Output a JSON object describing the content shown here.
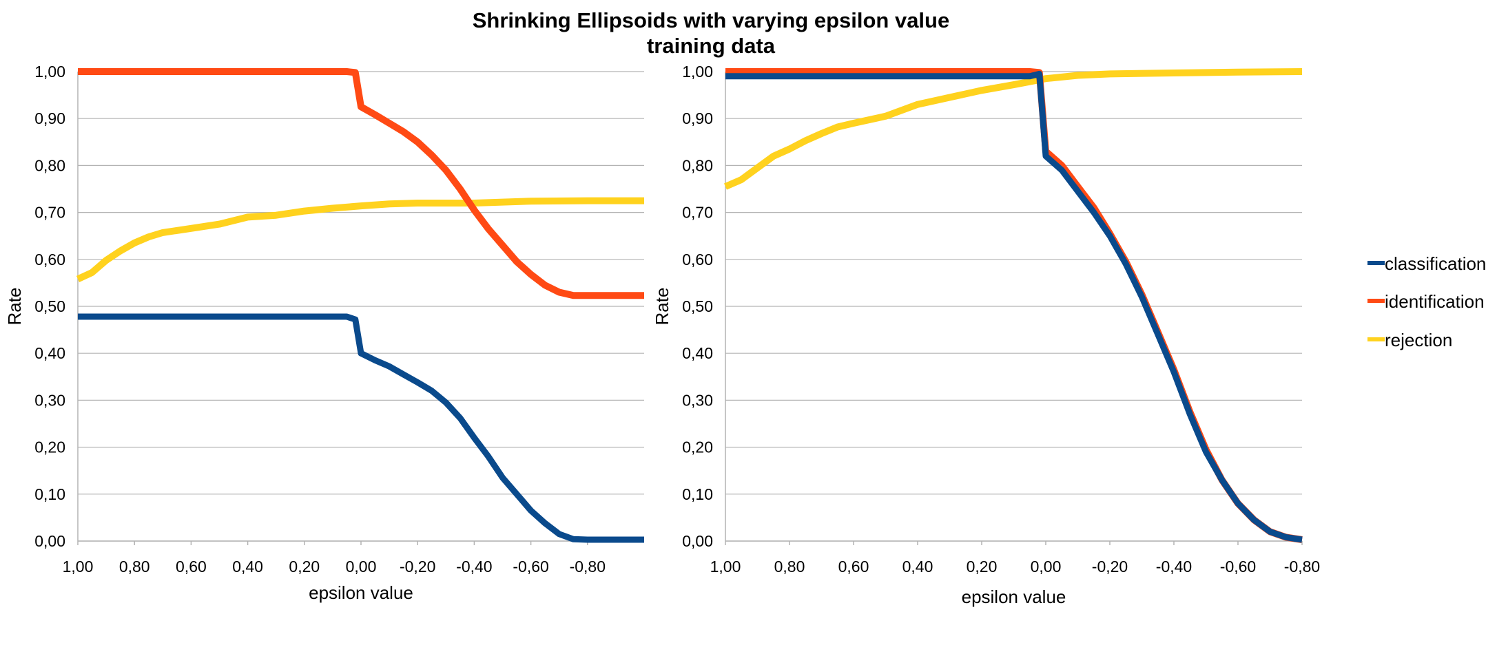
{
  "title_line1": "Shrinking Ellipsoids with varying epsilon value",
  "title_line2": "training data",
  "legend": [
    {
      "label": "classification",
      "color": "#0a4a8c"
    },
    {
      "label": "identification",
      "color": "#ff4a14"
    },
    {
      "label": "rejection",
      "color": "#ffd21e"
    }
  ],
  "chart_data": [
    {
      "type": "line",
      "xlabel": "epsilon value",
      "ylabel": "Rate",
      "xlim": [
        1.0,
        -1.0
      ],
      "ylim": [
        0,
        1
      ],
      "y_ticks": [
        "0,00",
        "0,10",
        "0,20",
        "0,30",
        "0,40",
        "0,50",
        "0,60",
        "0,70",
        "0,80",
        "0,90",
        "1,00"
      ],
      "x_ticks": [
        {
          "v": 1.0,
          "label": "1,00"
        },
        {
          "v": 0.8,
          "label": "0,80"
        },
        {
          "v": 0.6,
          "label": "0,60"
        },
        {
          "v": 0.4,
          "label": "0,40"
        },
        {
          "v": 0.2,
          "label": "0,20"
        },
        {
          "v": 0.0,
          "label": "0,00"
        },
        {
          "v": -0.2,
          "label": "-0,20"
        },
        {
          "v": -0.4,
          "label": "-0,40"
        },
        {
          "v": -0.6,
          "label": "-0,60"
        },
        {
          "v": -0.8,
          "label": "-0,80"
        }
      ],
      "grid": true,
      "series": [
        {
          "name": "classification",
          "color": "#0a4a8c",
          "points": [
            [
              1.0,
              0.478
            ],
            [
              0.8,
              0.478
            ],
            [
              0.6,
              0.478
            ],
            [
              0.4,
              0.478
            ],
            [
              0.2,
              0.478
            ],
            [
              0.05,
              0.478
            ],
            [
              0.02,
              0.472
            ],
            [
              0.0,
              0.4
            ],
            [
              -0.05,
              0.385
            ],
            [
              -0.1,
              0.372
            ],
            [
              -0.15,
              0.355
            ],
            [
              -0.2,
              0.338
            ],
            [
              -0.25,
              0.32
            ],
            [
              -0.3,
              0.295
            ],
            [
              -0.35,
              0.262
            ],
            [
              -0.4,
              0.22
            ],
            [
              -0.45,
              0.18
            ],
            [
              -0.5,
              0.135
            ],
            [
              -0.55,
              0.1
            ],
            [
              -0.6,
              0.065
            ],
            [
              -0.65,
              0.038
            ],
            [
              -0.7,
              0.015
            ],
            [
              -0.75,
              0.004
            ],
            [
              -0.8,
              0.003
            ],
            [
              -1.0,
              0.003
            ]
          ]
        },
        {
          "name": "identification",
          "color": "#ff4a14",
          "points": [
            [
              1.0,
              1.0
            ],
            [
              0.8,
              1.0
            ],
            [
              0.6,
              1.0
            ],
            [
              0.4,
              1.0
            ],
            [
              0.2,
              1.0
            ],
            [
              0.05,
              1.0
            ],
            [
              0.02,
              0.998
            ],
            [
              0.0,
              0.925
            ],
            [
              -0.05,
              0.908
            ],
            [
              -0.1,
              0.89
            ],
            [
              -0.15,
              0.872
            ],
            [
              -0.2,
              0.85
            ],
            [
              -0.25,
              0.822
            ],
            [
              -0.3,
              0.79
            ],
            [
              -0.35,
              0.75
            ],
            [
              -0.4,
              0.705
            ],
            [
              -0.45,
              0.665
            ],
            [
              -0.5,
              0.63
            ],
            [
              -0.55,
              0.595
            ],
            [
              -0.6,
              0.568
            ],
            [
              -0.65,
              0.545
            ],
            [
              -0.7,
              0.53
            ],
            [
              -0.75,
              0.523
            ],
            [
              -0.8,
              0.523
            ],
            [
              -1.0,
              0.523
            ]
          ]
        },
        {
          "name": "rejection",
          "color": "#ffd21e",
          "points": [
            [
              1.0,
              0.558
            ],
            [
              0.95,
              0.572
            ],
            [
              0.9,
              0.598
            ],
            [
              0.85,
              0.618
            ],
            [
              0.8,
              0.635
            ],
            [
              0.75,
              0.648
            ],
            [
              0.7,
              0.657
            ],
            [
              0.6,
              0.666
            ],
            [
              0.5,
              0.675
            ],
            [
              0.4,
              0.69
            ],
            [
              0.3,
              0.694
            ],
            [
              0.2,
              0.703
            ],
            [
              0.1,
              0.709
            ],
            [
              0.0,
              0.714
            ],
            [
              -0.1,
              0.718
            ],
            [
              -0.2,
              0.72
            ],
            [
              -0.3,
              0.72
            ],
            [
              -0.4,
              0.72
            ],
            [
              -0.5,
              0.722
            ],
            [
              -0.6,
              0.724
            ],
            [
              -0.8,
              0.725
            ],
            [
              -1.0,
              0.725
            ]
          ]
        }
      ]
    },
    {
      "type": "line",
      "xlabel": "epsilon value",
      "ylabel": "Rate",
      "xlim": [
        1.0,
        -0.8
      ],
      "ylim": [
        0,
        1
      ],
      "y_ticks": [
        "0,00",
        "0,10",
        "0,20",
        "0,30",
        "0,40",
        "0,50",
        "0,60",
        "0,70",
        "0,80",
        "0,90",
        "1,00"
      ],
      "x_ticks": [
        {
          "v": 1.0,
          "label": "1,00"
        },
        {
          "v": 0.8,
          "label": "0,80"
        },
        {
          "v": 0.6,
          "label": "0,60"
        },
        {
          "v": 0.4,
          "label": "0,40"
        },
        {
          "v": 0.2,
          "label": "0,20"
        },
        {
          "v": 0.0,
          "label": "0,00"
        },
        {
          "v": -0.2,
          "label": "-0,20"
        },
        {
          "v": -0.4,
          "label": "-0,40"
        },
        {
          "v": -0.6,
          "label": "-0,60"
        },
        {
          "v": -0.8,
          "label": "-0,80"
        }
      ],
      "grid": true,
      "series": [
        {
          "name": "classification",
          "color": "#0a4a8c",
          "points": [
            [
              1.0,
              0.99
            ],
            [
              0.6,
              0.99
            ],
            [
              0.2,
              0.99
            ],
            [
              0.05,
              0.99
            ],
            [
              0.02,
              0.995
            ],
            [
              0.0,
              0.82
            ],
            [
              -0.05,
              0.79
            ],
            [
              -0.1,
              0.745
            ],
            [
              -0.15,
              0.7
            ],
            [
              -0.2,
              0.65
            ],
            [
              -0.25,
              0.59
            ],
            [
              -0.3,
              0.52
            ],
            [
              -0.35,
              0.44
            ],
            [
              -0.4,
              0.36
            ],
            [
              -0.45,
              0.27
            ],
            [
              -0.5,
              0.19
            ],
            [
              -0.55,
              0.13
            ],
            [
              -0.6,
              0.08
            ],
            [
              -0.65,
              0.045
            ],
            [
              -0.7,
              0.02
            ],
            [
              -0.75,
              0.008
            ],
            [
              -0.8,
              0.003
            ]
          ]
        },
        {
          "name": "identification",
          "color": "#ff4a14",
          "points": [
            [
              1.0,
              1.0
            ],
            [
              0.6,
              1.0
            ],
            [
              0.2,
              1.0
            ],
            [
              0.05,
              1.0
            ],
            [
              0.02,
              0.998
            ],
            [
              0.0,
              0.83
            ],
            [
              -0.05,
              0.8
            ],
            [
              -0.1,
              0.755
            ],
            [
              -0.15,
              0.71
            ],
            [
              -0.2,
              0.655
            ],
            [
              -0.25,
              0.595
            ],
            [
              -0.3,
              0.525
            ],
            [
              -0.35,
              0.445
            ],
            [
              -0.4,
              0.365
            ],
            [
              -0.45,
              0.275
            ],
            [
              -0.5,
              0.195
            ],
            [
              -0.55,
              0.13
            ],
            [
              -0.6,
              0.08
            ],
            [
              -0.65,
              0.045
            ],
            [
              -0.7,
              0.02
            ],
            [
              -0.75,
              0.008
            ],
            [
              -0.8,
              0.003
            ]
          ]
        },
        {
          "name": "rejection",
          "color": "#ffd21e",
          "points": [
            [
              1.0,
              0.755
            ],
            [
              0.95,
              0.77
            ],
            [
              0.9,
              0.795
            ],
            [
              0.85,
              0.82
            ],
            [
              0.8,
              0.835
            ],
            [
              0.75,
              0.853
            ],
            [
              0.7,
              0.868
            ],
            [
              0.65,
              0.882
            ],
            [
              0.6,
              0.89
            ],
            [
              0.5,
              0.905
            ],
            [
              0.4,
              0.93
            ],
            [
              0.3,
              0.945
            ],
            [
              0.2,
              0.96
            ],
            [
              0.1,
              0.972
            ],
            [
              0.0,
              0.985
            ],
            [
              -0.1,
              0.992
            ],
            [
              -0.2,
              0.995
            ],
            [
              -0.4,
              0.997
            ],
            [
              -0.6,
              0.999
            ],
            [
              -0.8,
              1.0
            ]
          ]
        }
      ]
    }
  ]
}
